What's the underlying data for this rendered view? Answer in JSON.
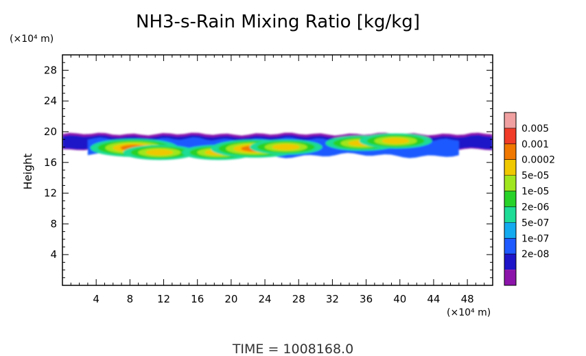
{
  "chart_data": {
    "type": "heatmap",
    "title": "NH3-s-Rain Mixing Ratio [kg/kg]",
    "xlabel": "",
    "ylabel": "Height",
    "x_unit": "(×10⁴ m)",
    "y_unit": "(×10⁴ m)",
    "xlim": [
      0,
      51
    ],
    "ylim": [
      0,
      30
    ],
    "x_ticks": [
      "4",
      "8",
      "12",
      "16",
      "20",
      "24",
      "28",
      "32",
      "36",
      "40",
      "44",
      "48"
    ],
    "y_ticks": [
      "4",
      "8",
      "12",
      "16",
      "20",
      "24",
      "28"
    ],
    "colorbar_labels": [
      "0.005",
      "0.001",
      "0.0002",
      "5e-05",
      "1e-05",
      "2e-06",
      "5e-07",
      "1e-07",
      "2e-08"
    ],
    "colorbar_colors": [
      "#f0a0a0",
      "#f03c28",
      "#f07800",
      "#f0c800",
      "#a0e61e",
      "#28d228",
      "#1edc96",
      "#14aaf0",
      "#1e5aff",
      "#1e14c8",
      "#8c14aa"
    ],
    "field": {
      "layer_bottom_y": 16.5,
      "layer_top_y": 19.8,
      "maxima": [
        {
          "x": 8.5,
          "y": 17.9,
          "level": "0.0002"
        },
        {
          "x": 11.5,
          "y": 17.3,
          "level": "5e-05"
        },
        {
          "x": 18.5,
          "y": 17.3,
          "level": "5e-05"
        },
        {
          "x": 22.8,
          "y": 17.8,
          "level": "0.0002"
        },
        {
          "x": 26.5,
          "y": 18.0,
          "level": "5e-05"
        },
        {
          "x": 35.5,
          "y": 18.5,
          "level": "5e-05"
        },
        {
          "x": 39.5,
          "y": 18.8,
          "level": "5e-05"
        }
      ]
    },
    "time_label": "TIME = 1008168.0"
  }
}
